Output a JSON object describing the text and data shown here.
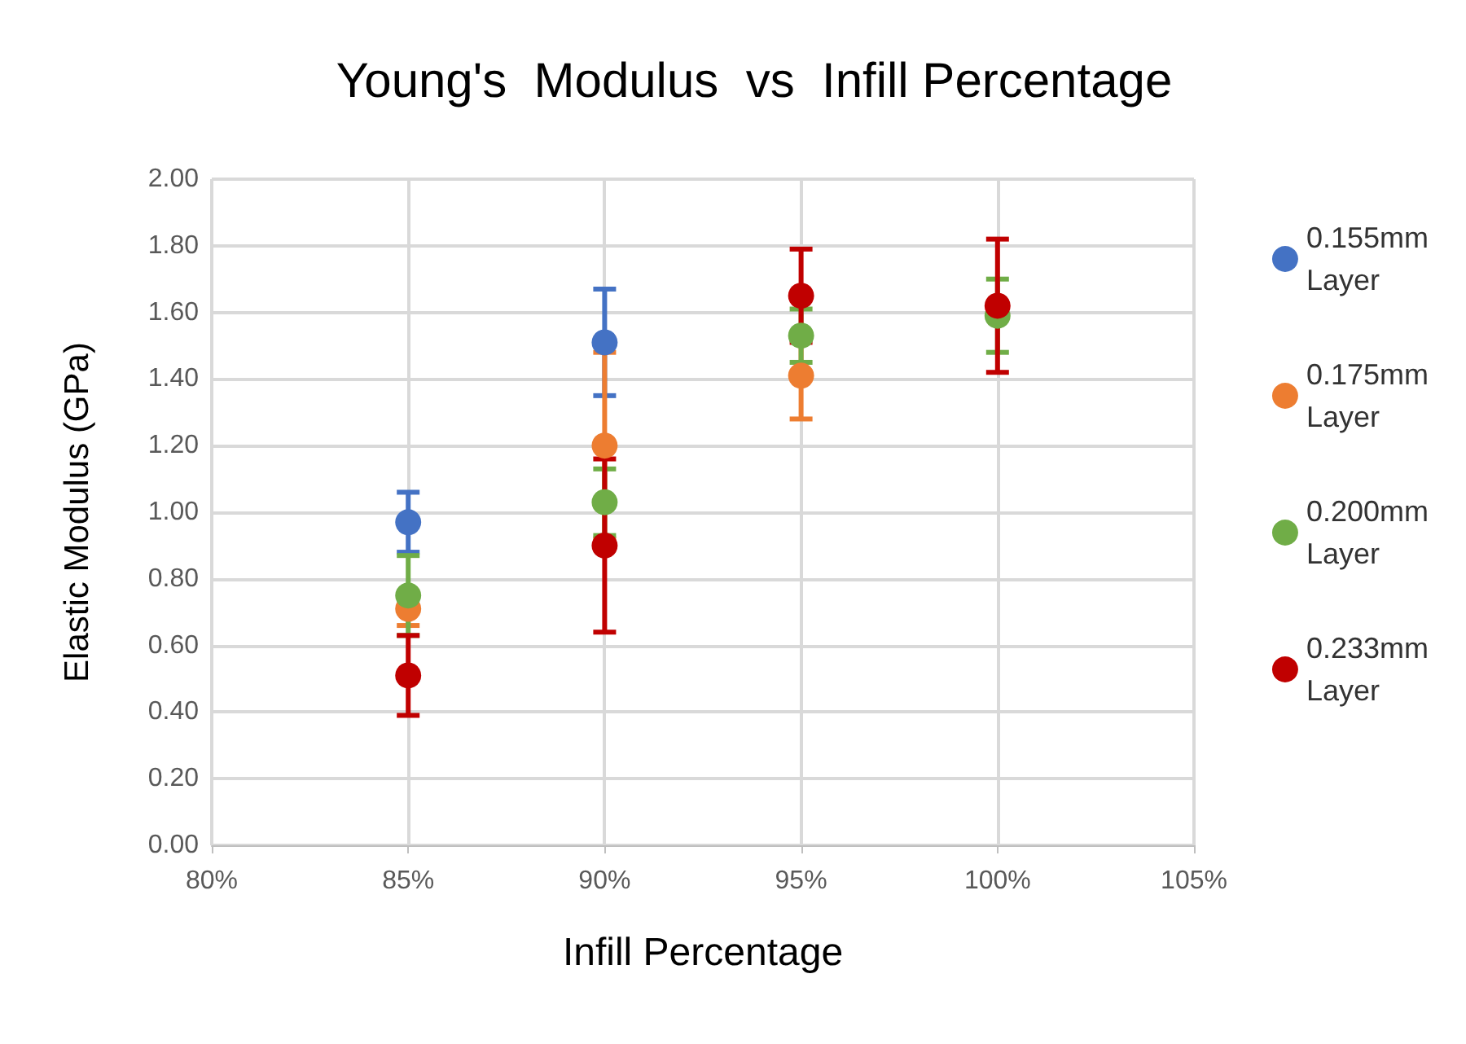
{
  "chart_data": {
    "type": "scatter",
    "title": "Young's  Modulus  vs  Infill Percentage",
    "xlabel": "Infill Percentage",
    "ylabel": "Elastic Modulus (GPa)",
    "x": [
      85,
      90,
      95,
      100
    ],
    "series": [
      {
        "name": "0.155mm Layer",
        "color": "#4472c4",
        "values": [
          0.97,
          1.51,
          null,
          null
        ],
        "errors": [
          0.09,
          0.16,
          null,
          null
        ]
      },
      {
        "name": "0.175mm Layer",
        "color": "#ed7d31",
        "values": [
          0.71,
          1.2,
          1.41,
          null
        ],
        "errors": [
          0.05,
          0.28,
          0.13,
          null
        ]
      },
      {
        "name": "0.200mm Layer",
        "color": "#70ad47",
        "values": [
          0.75,
          1.03,
          1.53,
          1.59
        ],
        "errors": [
          0.12,
          0.1,
          0.08,
          0.11
        ]
      },
      {
        "name": "0.233mm Layer",
        "color": "#c00000",
        "values": [
          0.51,
          0.9,
          1.65,
          1.62
        ],
        "errors": [
          0.12,
          0.26,
          0.14,
          0.2
        ]
      }
    ],
    "xlim": [
      80,
      105
    ],
    "xticks": [
      {
        "value": 80,
        "label": "80%"
      },
      {
        "value": 85,
        "label": "85%"
      },
      {
        "value": 90,
        "label": "90%"
      },
      {
        "value": 95,
        "label": "95%"
      },
      {
        "value": 100,
        "label": "100%"
      },
      {
        "value": 105,
        "label": "105%"
      }
    ],
    "ylim": [
      0,
      2
    ],
    "yticks": [
      {
        "value": 0,
        "label": "0.00"
      },
      {
        "value": 0.2,
        "label": "0.20"
      },
      {
        "value": 0.4,
        "label": "0.40"
      },
      {
        "value": 0.6,
        "label": "0.60"
      },
      {
        "value": 0.8,
        "label": "0.80"
      },
      {
        "value": 1,
        "label": "1.00"
      },
      {
        "value": 1.2,
        "label": "1.20"
      },
      {
        "value": 1.4,
        "label": "1.40"
      },
      {
        "value": 1.6,
        "label": "1.60"
      },
      {
        "value": 1.8,
        "label": "1.80"
      },
      {
        "value": 2,
        "label": "2.00"
      }
    ],
    "grid": true,
    "legend": "right",
    "marker": "circle"
  }
}
